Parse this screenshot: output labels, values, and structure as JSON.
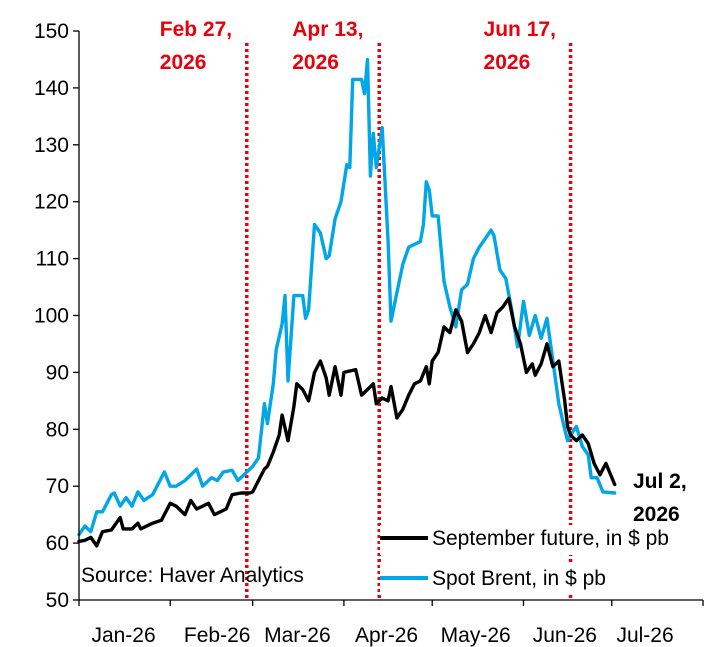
{
  "chart_data": {
    "type": "line",
    "title": "",
    "xlabel": "",
    "ylabel": "",
    "ylim": [
      50,
      150
    ],
    "yticks": [
      50,
      60,
      70,
      80,
      90,
      100,
      110,
      120,
      130,
      140,
      150
    ],
    "x_tick_labels": [
      "Jan-26",
      "Feb-26",
      "Mar-26",
      "Apr-26",
      "May-26",
      "Jun-26",
      "Jul-26"
    ],
    "x_range": [
      "2026-01-01",
      "2026-08-01"
    ],
    "grid": false,
    "legend_position": "bottom-right",
    "source_note": "Source: Haver Analytics",
    "colors": {
      "future": "#000000",
      "brent": "#00a6e8",
      "event": "#e8000b"
    },
    "events": [
      {
        "date": "2026-02-27",
        "label_lines": [
          "Feb 27,",
          "2026"
        ]
      },
      {
        "date": "2026-04-13",
        "label_lines": [
          "Apr 13,",
          "2026"
        ]
      },
      {
        "date": "2026-06-17",
        "label_lines": [
          "Jun 17,",
          "2026"
        ]
      }
    ],
    "end_label_lines": [
      "Jul 2,",
      "2026"
    ],
    "series": [
      {
        "name": "September future, in $ pb",
        "key": "future",
        "points": [
          [
            "2026-01-01",
            60.3
          ],
          [
            "2026-01-03",
            60.5
          ],
          [
            "2026-01-05",
            61.0
          ],
          [
            "2026-01-07",
            59.5
          ],
          [
            "2026-01-09",
            62.0
          ],
          [
            "2026-01-12",
            62.3
          ],
          [
            "2026-01-15",
            64.5
          ],
          [
            "2026-01-16",
            62.5
          ],
          [
            "2026-01-19",
            62.5
          ],
          [
            "2026-01-21",
            63.5
          ],
          [
            "2026-01-22",
            62.5
          ],
          [
            "2026-01-26",
            63.5
          ],
          [
            "2026-01-29",
            64.0
          ],
          [
            "2026-02-01",
            67.0
          ],
          [
            "2026-02-03",
            66.5
          ],
          [
            "2026-02-06",
            65.0
          ],
          [
            "2026-02-08",
            67.5
          ],
          [
            "2026-02-10",
            66.0
          ],
          [
            "2026-02-14",
            67.0
          ],
          [
            "2026-02-16",
            65.0
          ],
          [
            "2026-02-20",
            66.0
          ],
          [
            "2026-02-22",
            68.5
          ],
          [
            "2026-02-25",
            68.8
          ],
          [
            "2026-02-28",
            68.8
          ],
          [
            "2026-03-01",
            69.0
          ],
          [
            "2026-03-03",
            71.0
          ],
          [
            "2026-03-05",
            73.0
          ],
          [
            "2026-03-06",
            73.5
          ],
          [
            "2026-03-08",
            76.0
          ],
          [
            "2026-03-10",
            79.0
          ],
          [
            "2026-03-11",
            82.5
          ],
          [
            "2026-03-13",
            78.0
          ],
          [
            "2026-03-15",
            84.0
          ],
          [
            "2026-03-16",
            88.0
          ],
          [
            "2026-03-18",
            87.0
          ],
          [
            "2026-03-20",
            85.0
          ],
          [
            "2026-03-22",
            90.0
          ],
          [
            "2026-03-24",
            92.0
          ],
          [
            "2026-03-26",
            89.0
          ],
          [
            "2026-03-27",
            86.0
          ],
          [
            "2026-03-29",
            91.0
          ],
          [
            "2026-03-31",
            86.0
          ],
          [
            "2026-04-01",
            90.0
          ],
          [
            "2026-04-05",
            90.5
          ],
          [
            "2026-04-07",
            86.0
          ],
          [
            "2026-04-09",
            87.0
          ],
          [
            "2026-04-11",
            88.0
          ],
          [
            "2026-04-12",
            84.5
          ],
          [
            "2026-04-14",
            85.5
          ],
          [
            "2026-04-16",
            85.0
          ],
          [
            "2026-04-17",
            87.5
          ],
          [
            "2026-04-19",
            82.0
          ],
          [
            "2026-04-21",
            83.5
          ],
          [
            "2026-04-23",
            86.0
          ],
          [
            "2026-04-25",
            88.0
          ],
          [
            "2026-04-27",
            88.5
          ],
          [
            "2026-04-29",
            91.0
          ],
          [
            "2026-04-30",
            88.0
          ],
          [
            "2026-05-01",
            92.0
          ],
          [
            "2026-05-03",
            93.5
          ],
          [
            "2026-05-05",
            98.0
          ],
          [
            "2026-05-07",
            97.0
          ],
          [
            "2026-05-09",
            101.0
          ],
          [
            "2026-05-11",
            99.0
          ],
          [
            "2026-05-13",
            93.5
          ],
          [
            "2026-05-15",
            95.0
          ],
          [
            "2026-05-17",
            97.0
          ],
          [
            "2026-05-19",
            100.0
          ],
          [
            "2026-05-21",
            97.0
          ],
          [
            "2026-05-23",
            100.5
          ],
          [
            "2026-05-25",
            101.5
          ],
          [
            "2026-05-27",
            103.0
          ],
          [
            "2026-05-29",
            98.0
          ],
          [
            "2026-05-31",
            95.0
          ],
          [
            "2026-06-02",
            90.0
          ],
          [
            "2026-06-04",
            91.5
          ],
          [
            "2026-06-05",
            89.5
          ],
          [
            "2026-06-07",
            91.5
          ],
          [
            "2026-06-09",
            95.0
          ],
          [
            "2026-06-11",
            91.0
          ],
          [
            "2026-06-13",
            92.0
          ],
          [
            "2026-06-15",
            85.0
          ],
          [
            "2026-06-16",
            80.5
          ],
          [
            "2026-06-17",
            79.0
          ],
          [
            "2026-06-19",
            78.0
          ],
          [
            "2026-06-21",
            79.0
          ],
          [
            "2026-06-23",
            77.5
          ],
          [
            "2026-06-25",
            74.0
          ],
          [
            "2026-06-27",
            72.0
          ],
          [
            "2026-06-29",
            74.0
          ],
          [
            "2026-07-02",
            70.3
          ]
        ]
      },
      {
        "name": "Spot Brent, in $ pb",
        "key": "brent",
        "points": [
          [
            "2026-01-01",
            61.5
          ],
          [
            "2026-01-03",
            63.0
          ],
          [
            "2026-01-05",
            62.0
          ],
          [
            "2026-01-07",
            65.5
          ],
          [
            "2026-01-09",
            65.5
          ],
          [
            "2026-01-10",
            66.5
          ],
          [
            "2026-01-12",
            68.5
          ],
          [
            "2026-01-13",
            68.8
          ],
          [
            "2026-01-15",
            66.5
          ],
          [
            "2026-01-17",
            68.0
          ],
          [
            "2026-01-19",
            66.5
          ],
          [
            "2026-01-21",
            69.0
          ],
          [
            "2026-01-23",
            67.5
          ],
          [
            "2026-01-26",
            68.5
          ],
          [
            "2026-01-29",
            71.5
          ],
          [
            "2026-01-30",
            72.5
          ],
          [
            "2026-02-01",
            70.0
          ],
          [
            "2026-02-03",
            70.0
          ],
          [
            "2026-02-06",
            71.0
          ],
          [
            "2026-02-10",
            73.0
          ],
          [
            "2026-02-12",
            70.0
          ],
          [
            "2026-02-15",
            71.5
          ],
          [
            "2026-02-17",
            71.0
          ],
          [
            "2026-02-19",
            72.5
          ],
          [
            "2026-02-22",
            72.8
          ],
          [
            "2026-02-24",
            71.0
          ],
          [
            "2026-02-27",
            72.5
          ],
          [
            "2026-03-01",
            73.5
          ],
          [
            "2026-03-03",
            75.0
          ],
          [
            "2026-03-05",
            84.5
          ],
          [
            "2026-03-06",
            81.0
          ],
          [
            "2026-03-08",
            88.0
          ],
          [
            "2026-03-09",
            94.0
          ],
          [
            "2026-03-11",
            98.5
          ],
          [
            "2026-03-12",
            103.5
          ],
          [
            "2026-03-13",
            88.5
          ],
          [
            "2026-03-15",
            103.5
          ],
          [
            "2026-03-18",
            103.5
          ],
          [
            "2026-03-19",
            99.5
          ],
          [
            "2026-03-20",
            101.0
          ],
          [
            "2026-03-22",
            116.0
          ],
          [
            "2026-03-24",
            114.5
          ],
          [
            "2026-03-26",
            110.0
          ],
          [
            "2026-03-27",
            110.5
          ],
          [
            "2026-03-29",
            117.0
          ],
          [
            "2026-03-31",
            120.0
          ],
          [
            "2026-04-02",
            126.5
          ],
          [
            "2026-04-03",
            126.0
          ],
          [
            "2026-04-04",
            141.5
          ],
          [
            "2026-04-07",
            141.5
          ],
          [
            "2026-04-08",
            139.0
          ],
          [
            "2026-04-09",
            145.0
          ],
          [
            "2026-04-10",
            124.5
          ],
          [
            "2026-04-11",
            132.0
          ],
          [
            "2026-04-12",
            126.0
          ],
          [
            "2026-04-14",
            133.0
          ],
          [
            "2026-04-16",
            113.0
          ],
          [
            "2026-04-17",
            99.0
          ],
          [
            "2026-04-19",
            104.0
          ],
          [
            "2026-04-21",
            109.0
          ],
          [
            "2026-04-23",
            112.0
          ],
          [
            "2026-04-25",
            112.5
          ],
          [
            "2026-04-27",
            113.0
          ],
          [
            "2026-04-28",
            116.0
          ],
          [
            "2026-04-29",
            123.5
          ],
          [
            "2026-04-30",
            122.0
          ],
          [
            "2026-05-01",
            117.5
          ],
          [
            "2026-05-03",
            117.5
          ],
          [
            "2026-05-05",
            106.0
          ],
          [
            "2026-05-07",
            101.5
          ],
          [
            "2026-05-09",
            98.0
          ],
          [
            "2026-05-11",
            104.5
          ],
          [
            "2026-05-13",
            105.5
          ],
          [
            "2026-05-15",
            110.0
          ],
          [
            "2026-05-17",
            112.0
          ],
          [
            "2026-05-19",
            113.5
          ],
          [
            "2026-05-21",
            115.0
          ],
          [
            "2026-05-22",
            114.0
          ],
          [
            "2026-05-24",
            108.0
          ],
          [
            "2026-05-26",
            106.5
          ],
          [
            "2026-05-28",
            101.0
          ],
          [
            "2026-05-30",
            94.5
          ],
          [
            "2026-06-01",
            102.5
          ],
          [
            "2026-06-03",
            96.5
          ],
          [
            "2026-06-05",
            100.0
          ],
          [
            "2026-06-07",
            96.0
          ],
          [
            "2026-06-09",
            99.5
          ],
          [
            "2026-06-11",
            92.0
          ],
          [
            "2026-06-13",
            84.5
          ],
          [
            "2026-06-15",
            80.0
          ],
          [
            "2026-06-16",
            78.0
          ],
          [
            "2026-06-17",
            79.0
          ],
          [
            "2026-06-19",
            80.5
          ],
          [
            "2026-06-21",
            77.0
          ],
          [
            "2026-06-23",
            75.5
          ],
          [
            "2026-06-24",
            71.5
          ],
          [
            "2026-06-26",
            71.5
          ],
          [
            "2026-06-28",
            69.0
          ],
          [
            "2026-07-02",
            68.8
          ]
        ]
      }
    ]
  }
}
